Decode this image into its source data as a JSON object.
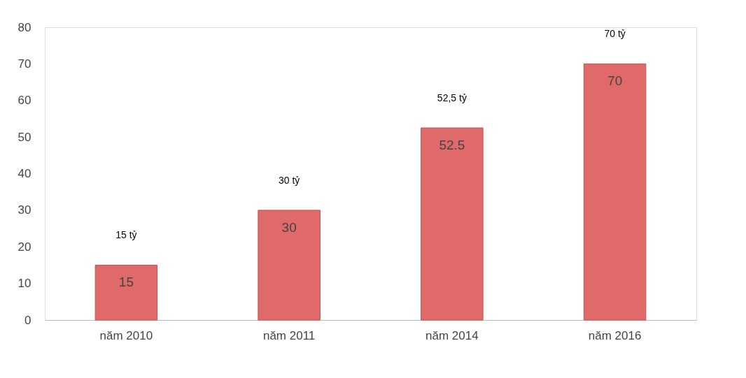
{
  "chart_data": {
    "type": "bar",
    "categories": [
      "năm 2010",
      "năm 2011",
      "năm 2014",
      "năm 2016"
    ],
    "values": [
      15,
      30,
      52.5,
      70
    ],
    "color": "#e06a6a",
    "ylim": [
      0,
      80
    ],
    "yticks": [
      0,
      10,
      20,
      30,
      40,
      50,
      60,
      70,
      80
    ],
    "grid": false,
    "data_labels": true,
    "annotations": [
      "15 tỷ",
      "30 tỷ",
      "52,5 tỷ",
      "70 tỷ"
    ]
  }
}
